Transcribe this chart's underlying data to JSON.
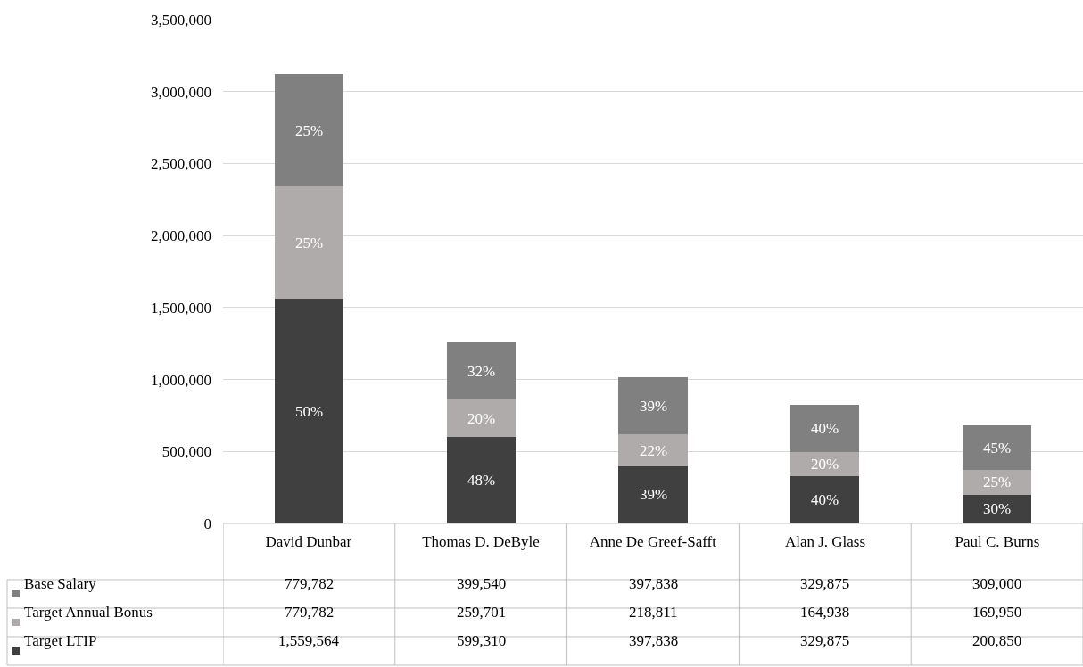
{
  "chart_data": {
    "type": "bar",
    "stacked": true,
    "categories": [
      "David Dunbar",
      "Thomas D. DeByle",
      "Anne De Greef-Safft",
      "Alan J. Glass",
      "Paul C. Burns"
    ],
    "series": [
      {
        "name": "Target LTIP",
        "color": "#404040",
        "values": [
          1559564,
          599310,
          397838,
          329875,
          200850
        ],
        "value_labels": [
          "1,559,564",
          "599,310",
          "397,838",
          "329,875",
          "200,850"
        ]
      },
      {
        "name": "Target Annual Bonus",
        "color": "#afabab",
        "values": [
          779782,
          259701,
          218811,
          164938,
          169950
        ],
        "value_labels": [
          "779,782",
          "259,701",
          "218,811",
          "164,938",
          "169,950"
        ]
      },
      {
        "name": "Base Salary",
        "color": "#808080",
        "values": [
          779782,
          399540,
          397838,
          329875,
          309000
        ],
        "value_labels": [
          "779,782",
          "399,540",
          "397,838",
          "329,875",
          "309,000"
        ]
      }
    ],
    "annotations": [
      "50%",
      "25%",
      "25%",
      "48%",
      "20%",
      "32%",
      "39%",
      "22%",
      "39%",
      "40%",
      "20%",
      "40%",
      "30%",
      "25%",
      "45%"
    ],
    "ylim": [
      0,
      3500000
    ],
    "yticks": [
      {
        "value": 0,
        "label": "0"
      },
      {
        "value": 500000,
        "label": "500,000"
      },
      {
        "value": 1000000,
        "label": "1,000,000"
      },
      {
        "value": 1500000,
        "label": "1,500,000"
      },
      {
        "value": 2000000,
        "label": "2,000,000"
      },
      {
        "value": 2500000,
        "label": "2,500,000"
      },
      {
        "value": 3000000,
        "label": "3,000,000"
      },
      {
        "value": 3500000,
        "label": "3,500,000"
      }
    ],
    "grid": "y",
    "legend": "bottom left"
  }
}
